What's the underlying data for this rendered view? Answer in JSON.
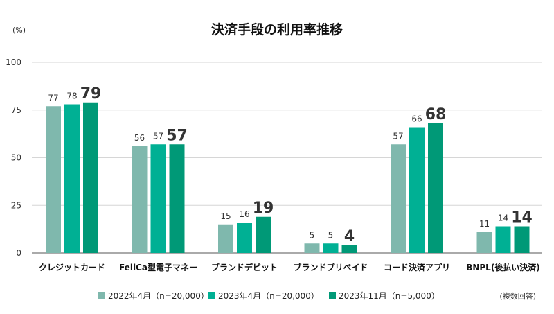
{
  "chart_data": {
    "type": "bar",
    "title": "決済手段の利用率推移",
    "ylabel": "(%)",
    "xlabel": "",
    "ylim": [
      0,
      100
    ],
    "yticks": [
      0,
      25,
      50,
      75,
      100
    ],
    "grid": true,
    "legend_position": "bottom",
    "note": "(複数回答)",
    "categories": [
      "クレジットカード",
      "FeliCa型電子マネー",
      "ブランドデビット",
      "ブランドプリペイド",
      "コード決済アプリ",
      "BNPL(後払い決済)"
    ],
    "series": [
      {
        "name": "2022年4月（n=20,000）",
        "color": "#7fb8ad",
        "values": [
          77,
          56,
          15,
          5,
          57,
          11
        ],
        "label_style": "normal"
      },
      {
        "name": "2023年4月（n=20,000）",
        "color": "#00b094",
        "values": [
          78,
          57,
          16,
          5,
          66,
          14
        ],
        "label_style": "normal"
      },
      {
        "name": "2023年11月（n=5,000）",
        "color": "#009977",
        "values": [
          79,
          57,
          19,
          4,
          68,
          14
        ],
        "label_style": "emphasis"
      }
    ]
  }
}
